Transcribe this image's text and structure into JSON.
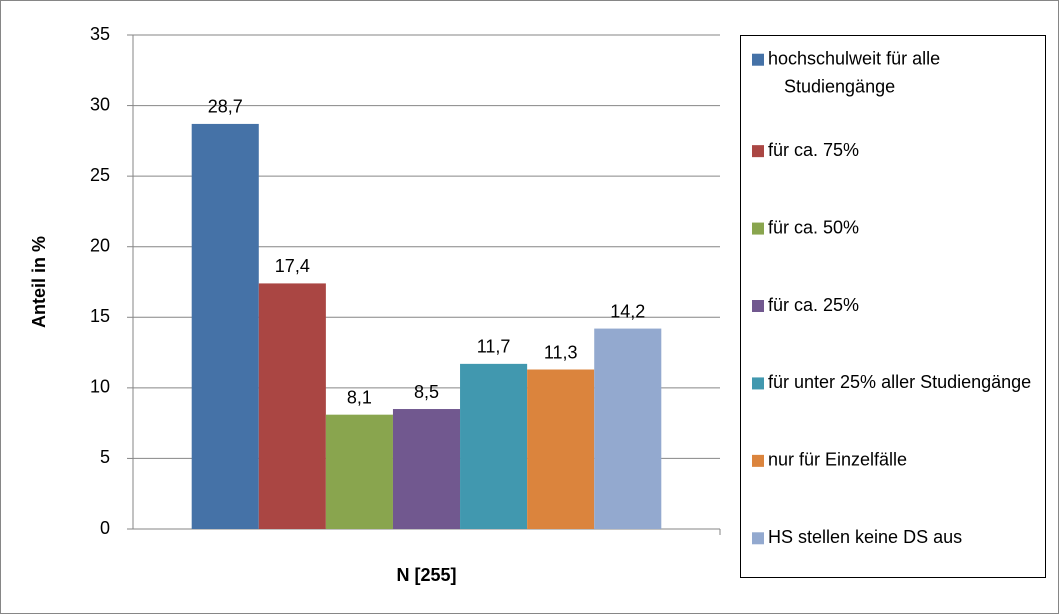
{
  "chart_data": {
    "type": "bar",
    "y_label": "Anteil in %",
    "categories": [
      "N [255]"
    ],
    "series": [
      {
        "name": "hochschulweit für alle Studiengänge",
        "color": "#4572a7",
        "values": [
          28.7
        ],
        "value_labels": [
          "28,7"
        ]
      },
      {
        "name": "für ca. 75%",
        "color": "#aa4643",
        "values": [
          17.4
        ],
        "value_labels": [
          "17,4"
        ]
      },
      {
        "name": "für ca. 50%",
        "color": "#89a54e",
        "values": [
          8.1
        ],
        "value_labels": [
          "8,1"
        ]
      },
      {
        "name": "für ca. 25%",
        "color": "#71588f",
        "values": [
          8.5
        ],
        "value_labels": [
          "8,5"
        ]
      },
      {
        "name": "für unter 25% aller Studiengänge",
        "color": "#4198af",
        "values": [
          11.7
        ],
        "value_labels": [
          "11,7"
        ]
      },
      {
        "name": "nur für Einzelfälle",
        "color": "#db843d",
        "values": [
          11.3
        ],
        "value_labels": [
          "11,3"
        ]
      },
      {
        "name": "HS stellen keine DS aus",
        "color": "#93a9cf",
        "values": [
          14.2
        ],
        "value_labels": [
          "14,2"
        ]
      }
    ],
    "ylim": [
      0,
      35
    ],
    "yticks": [
      0,
      5,
      10,
      15,
      20,
      25,
      30,
      35
    ],
    "grid": true,
    "legend": "right"
  }
}
